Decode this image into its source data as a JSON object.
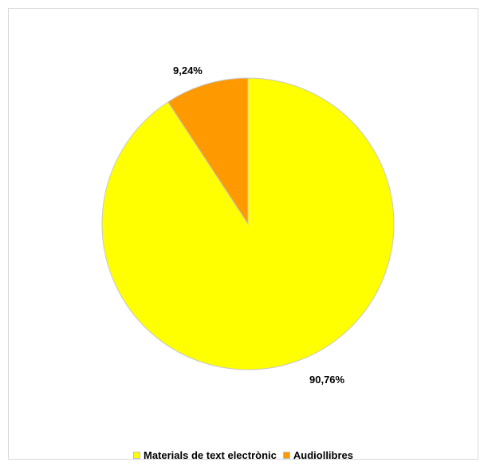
{
  "chart_data": {
    "type": "pie",
    "title": "",
    "categories": [
      "Materials de text electrònic",
      "Audiollibres"
    ],
    "values": [
      90.76,
      9.24
    ],
    "data_labels": [
      "90,76%",
      "9,24%"
    ],
    "colors": [
      "#ffff00",
      "#ff9900"
    ],
    "start_angle_deg": 0,
    "direction": "clockwise",
    "legend_position": "bottom"
  },
  "legend": {
    "items": [
      {
        "label": "Materials de text electrònic",
        "color": "#ffff00"
      },
      {
        "label": "Audiollibres",
        "color": "#ff9900"
      }
    ]
  }
}
